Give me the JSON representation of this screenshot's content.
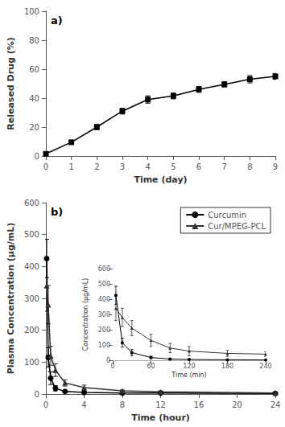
{
  "chart_data": [
    {
      "type": "line",
      "annotation": "a)",
      "xlabel": "Time (day)",
      "ylabel": "Released Drug (%)",
      "x": [
        0,
        1,
        2,
        3,
        4,
        5,
        6,
        7,
        8,
        9
      ],
      "series": [
        {
          "color": "#000000",
          "marker": "square",
          "values": [
            1.5,
            9.5,
            20.0,
            31.0,
            39.0,
            41.5,
            46.0,
            49.5,
            53.0,
            55.0
          ],
          "errors": [
            0.5,
            1.2,
            1.8,
            2.0,
            2.5,
            2.0,
            2.0,
            1.8,
            2.5,
            2.0
          ]
        }
      ],
      "xlim": [
        0,
        9
      ],
      "ylim": [
        0,
        100
      ],
      "xticks": [
        0,
        1,
        2,
        3,
        4,
        5,
        6,
        7,
        8,
        9
      ],
      "yticks": [
        0,
        20,
        40,
        60,
        80,
        100
      ],
      "grid": false
    },
    {
      "type": "line",
      "annotation": "b)",
      "xlabel": "Time (hour)",
      "ylabel": "Plasma Concentration (μg/mL)",
      "x": [
        0.083,
        0.25,
        0.5,
        1.0,
        2.0,
        4.0,
        8.0,
        12.0,
        24.0
      ],
      "series": [
        {
          "name": "Curcumin",
          "color": "#000000",
          "marker": "circle",
          "values": [
            425.0,
            115.0,
            50.0,
            18.0,
            8.0,
            5.0,
            3.0,
            3.0,
            2.0
          ],
          "errors": [
            60.0,
            30.0,
            20.0,
            8.0,
            3.0,
            2.0,
            1.5,
            1.5,
            1.0
          ]
        },
        {
          "name": "Cur/MPEG-PCL",
          "color": "#333333",
          "marker": "triangle",
          "values": [
            340.0,
            280.0,
            120.0,
            75.0,
            35.0,
            20.0,
            10.0,
            7.0,
            3.0
          ],
          "errors": [
            80.0,
            60.0,
            30.0,
            20.0,
            10.0,
            8.0,
            3.0,
            2.5,
            1.5
          ]
        }
      ],
      "xlim": [
        0,
        24
      ],
      "ylim": [
        0,
        600
      ],
      "xticks": [
        0,
        4,
        8,
        12,
        16,
        20,
        24
      ],
      "yticks": [
        0,
        100,
        200,
        300,
        400,
        500,
        600
      ],
      "legend": "upper right",
      "grid": false
    },
    {
      "type": "line",
      "xlabel": "Time (min)",
      "ylabel": "Concentration (μg/mL)",
      "x": [
        5,
        15,
        30,
        60,
        90,
        120,
        180,
        240
      ],
      "series": [
        {
          "color": "#000000",
          "marker": "circle",
          "values": [
            425.0,
            115.0,
            50.0,
            18.0,
            8.0,
            5.0,
            3.0,
            2.0
          ],
          "errors": [
            60.0,
            30.0,
            20.0,
            8.0,
            3.0,
            2.0,
            1.5,
            1.0
          ]
        },
        {
          "color": "#333333",
          "marker": "triangle",
          "values": [
            340.0,
            280.0,
            210.0,
            130.0,
            80.0,
            60.0,
            45.0,
            40.0
          ],
          "errors": [
            80.0,
            60.0,
            50.0,
            40.0,
            30.0,
            30.0,
            20.0,
            15.0
          ]
        }
      ],
      "xlim": [
        0,
        240
      ],
      "ylim": [
        0,
        600
      ],
      "xticks": [
        0,
        60,
        120,
        180,
        240
      ],
      "yticks": [
        0,
        100,
        200,
        300,
        400,
        500,
        600
      ],
      "grid": false
    }
  ]
}
